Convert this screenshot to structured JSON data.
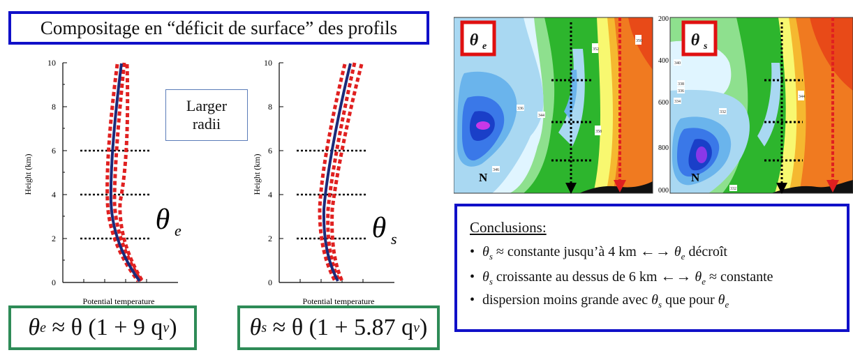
{
  "title": "Compositage en “déficit de surface” des profils",
  "annotation": {
    "line1": "Larger",
    "line2": "radii"
  },
  "profiles": [
    {
      "symbol": "θ",
      "subscript": "e",
      "ylabel": "Height (km)",
      "xlabel": "Potential temperature",
      "yticks": [
        "0",
        "2",
        "4",
        "6",
        "8",
        "10"
      ],
      "dotted_heights_km": [
        2,
        4,
        6
      ],
      "ylim": [
        0,
        10
      ]
    },
    {
      "symbol": "θ",
      "subscript": "s",
      "ylabel": "Height (km)",
      "xlabel": "Potential temperature",
      "yticks": [
        "0",
        "2",
        "4",
        "6",
        "8",
        "10"
      ],
      "dotted_heights_km": [
        2,
        4,
        6
      ],
      "ylim": [
        0,
        10
      ]
    }
  ],
  "formulas": {
    "theta_e": {
      "lhs": "θ",
      "lhs_sub": "e",
      "rhs": "≈ θ (1 + 9 q",
      "rhs_sub": "v",
      "close": ")"
    },
    "theta_s": {
      "lhs": "θ",
      "lhs_sub": "s",
      "rhs": "≈ θ (1 + 5.87 q",
      "rhs_sub": "v",
      "close": ")"
    }
  },
  "sections": [
    {
      "symbol": "θ",
      "subscript": "e",
      "yticks": [
        "200",
        "400",
        "600",
        "800",
        "1000"
      ],
      "marker": "N",
      "contour_labels": [
        "352",
        "344",
        "338",
        "330",
        "336",
        "342",
        "344",
        "346",
        "338",
        "346",
        "336",
        "358",
        "356",
        "350",
        "352"
      ]
    },
    {
      "symbol": "θ",
      "subscript": "s",
      "yticks": [
        "200",
        "400",
        "600",
        "800",
        "000"
      ],
      "marker": "N",
      "contour_labels": [
        "340",
        "338",
        "336",
        "334",
        "332",
        "332",
        "330",
        "350",
        "346",
        "344",
        "356",
        "352",
        "354",
        "340"
      ]
    }
  ],
  "conclusions": {
    "title": "Conclusions:",
    "items": [
      {
        "a_sym": "θ",
        "a_sub": "s",
        "text": "≈ constante jusqu’à 4 km",
        "arrow": "←→",
        "b_sym": "θ",
        "b_sub": "e",
        "tail": "décroît"
      },
      {
        "a_sym": "θ",
        "a_sub": "s",
        "text": "croissante au dessus de 6 km",
        "arrow": "←→",
        "b_sym": "θ",
        "b_sub": "e",
        "tail": "≈ constante"
      },
      {
        "a_sym": "",
        "a_sub": "",
        "text": "dispersion moins grande avec",
        "arrow": "",
        "b_sym": "θ",
        "b_sub": "s",
        "tail": "que pour",
        "c_sym": "θ",
        "c_sub": "e"
      }
    ]
  },
  "colors": {
    "title_border": "#1010c8",
    "formula_border": "#2e8b57",
    "profile_mean": "#1a2a7a",
    "profile_spread": "#e02020",
    "badge_border": "#e01010"
  }
}
